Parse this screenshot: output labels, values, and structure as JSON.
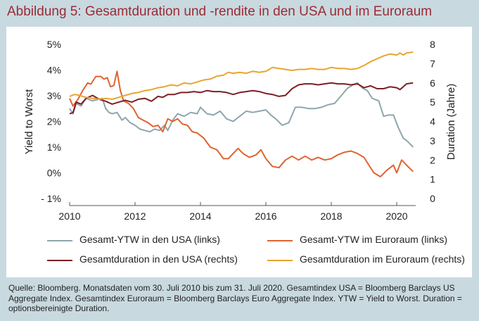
{
  "title": "Abbildung 5: Gesamtduration und -rendite in den USA und im Euroraum",
  "footnote": "Quelle: Bloomberg. Monatsdaten vom 30. Juli 2010 bis zum 31. Juli 2020. Gesamtindex USA = Bloomberg Barclays US Aggregate Index. Gesamtindex Euroraum = Bloomberg Barclays Euro Aggregate Index. YTW = Yield to Worst. Duration = optionsbereinigte Duration.",
  "chart_data": {
    "type": "line",
    "title": "",
    "ylabel": "Yield to Worst",
    "y2label": "Duration (Jahre)",
    "xlim": [
      2010,
      2020.58
    ],
    "ylim": [
      -1,
      5
    ],
    "y2lim": [
      0,
      8
    ],
    "x_ticks": [
      "2010",
      "2012",
      "2014",
      "2016",
      "2018",
      "2020"
    ],
    "x_tick_values": [
      2010,
      2012,
      2014,
      2016,
      2018,
      2020
    ],
    "y_ticks": [
      "- 1%",
      "0%",
      "1%",
      "2%",
      "3%",
      "4%",
      "5%"
    ],
    "y_tick_values": [
      -1,
      0,
      1,
      2,
      3,
      4,
      5
    ],
    "y2_ticks": [
      "0",
      "1",
      "2",
      "3",
      "4",
      "5",
      "6",
      "7",
      "8"
    ],
    "y2_tick_values": [
      0,
      1,
      2,
      3,
      4,
      5,
      6,
      7,
      8
    ],
    "grid": false,
    "legend_position": "bottom",
    "series": [
      {
        "name": "Gesamt-YTW in den USA (links)",
        "axis": "left",
        "color": "#8ea6ad",
        "x": [
          2010.0,
          2010.1,
          2010.2,
          2010.35,
          2010.5,
          2010.7,
          2010.85,
          2011.0,
          2011.1,
          2011.2,
          2011.3,
          2011.45,
          2011.6,
          2011.7,
          2011.85,
          2012.0,
          2012.15,
          2012.3,
          2012.45,
          2012.6,
          2012.75,
          2012.9,
          2013.0,
          2013.15,
          2013.3,
          2013.5,
          2013.7,
          2013.9,
          2014.0,
          2014.2,
          2014.4,
          2014.6,
          2014.8,
          2015.0,
          2015.2,
          2015.4,
          2015.6,
          2015.8,
          2016.0,
          2016.15,
          2016.3,
          2016.5,
          2016.7,
          2016.9,
          2017.1,
          2017.3,
          2017.5,
          2017.7,
          2017.9,
          2018.1,
          2018.3,
          2018.5,
          2018.7,
          2018.8,
          2018.95,
          2019.1,
          2019.25,
          2019.45,
          2019.6,
          2019.75,
          2019.9,
          2020.05,
          2020.2,
          2020.35,
          2020.5
        ],
        "y": [
          2.5,
          2.3,
          2.7,
          2.6,
          2.9,
          2.8,
          2.85,
          2.9,
          2.5,
          2.35,
          2.3,
          2.35,
          2.05,
          2.15,
          1.95,
          1.85,
          1.7,
          1.65,
          1.6,
          1.7,
          1.65,
          1.85,
          1.65,
          2.05,
          2.3,
          2.2,
          2.35,
          2.3,
          2.55,
          2.3,
          2.25,
          2.4,
          2.1,
          2.0,
          2.2,
          2.4,
          2.35,
          2.4,
          2.45,
          2.25,
          2.1,
          1.85,
          1.95,
          2.55,
          2.55,
          2.5,
          2.5,
          2.55,
          2.65,
          2.7,
          3.0,
          3.3,
          3.45,
          3.5,
          3.3,
          3.2,
          2.9,
          2.8,
          2.2,
          2.25,
          2.25,
          1.75,
          1.35,
          1.2,
          1.0
        ]
      },
      {
        "name": "Gesamt-YTW im Euroraum (links)",
        "axis": "left",
        "color": "#e06331",
        "x": [
          2010.0,
          2010.1,
          2010.25,
          2010.4,
          2010.55,
          2010.65,
          2010.8,
          2010.95,
          2011.05,
          2011.15,
          2011.25,
          2011.35,
          2011.45,
          2011.55,
          2011.65,
          2011.8,
          2011.95,
          2012.1,
          2012.25,
          2012.4,
          2012.55,
          2012.7,
          2012.85,
          2013.0,
          2013.15,
          2013.3,
          2013.45,
          2013.6,
          2013.75,
          2013.9,
          2014.1,
          2014.3,
          2014.5,
          2014.7,
          2014.85,
          2015.0,
          2015.15,
          2015.3,
          2015.5,
          2015.7,
          2015.85,
          2016.0,
          2016.2,
          2016.4,
          2016.6,
          2016.8,
          2017.0,
          2017.2,
          2017.4,
          2017.6,
          2017.8,
          2018.0,
          2018.2,
          2018.4,
          2018.6,
          2018.8,
          2019.0,
          2019.15,
          2019.3,
          2019.5,
          2019.7,
          2019.9,
          2020.0,
          2020.15,
          2020.3,
          2020.5
        ],
        "y": [
          2.9,
          2.6,
          2.85,
          3.2,
          3.5,
          3.45,
          3.75,
          3.75,
          3.65,
          3.7,
          3.35,
          3.4,
          3.95,
          3.2,
          2.8,
          2.7,
          2.5,
          2.15,
          2.05,
          1.95,
          1.8,
          1.85,
          1.6,
          2.1,
          2.0,
          2.1,
          1.9,
          1.85,
          1.6,
          1.55,
          1.35,
          1.0,
          0.9,
          0.55,
          0.55,
          0.75,
          0.95,
          0.75,
          0.6,
          0.7,
          0.9,
          0.55,
          0.25,
          0.2,
          0.5,
          0.65,
          0.5,
          0.65,
          0.5,
          0.6,
          0.5,
          0.55,
          0.7,
          0.8,
          0.85,
          0.75,
          0.6,
          0.3,
          0.0,
          -0.15,
          0.1,
          0.3,
          0.0,
          0.5,
          0.3,
          0.05
        ]
      },
      {
        "name": "Gesamtduration in den USA (rechts)",
        "axis": "right",
        "color": "#7d1f25",
        "x": [
          2010.0,
          2010.1,
          2010.2,
          2010.35,
          2010.5,
          2010.7,
          2010.9,
          2011.1,
          2011.3,
          2011.5,
          2011.7,
          2011.9,
          2012.1,
          2012.3,
          2012.5,
          2012.7,
          2012.85,
          2013.0,
          2013.2,
          2013.4,
          2013.6,
          2013.8,
          2014.0,
          2014.2,
          2014.4,
          2014.6,
          2014.8,
          2015.0,
          2015.2,
          2015.4,
          2015.6,
          2015.8,
          2016.0,
          2016.2,
          2016.4,
          2016.6,
          2016.8,
          2017.0,
          2017.2,
          2017.4,
          2017.6,
          2017.8,
          2018.0,
          2018.2,
          2018.4,
          2018.6,
          2018.8,
          2019.0,
          2019.2,
          2019.4,
          2019.6,
          2019.8,
          2020.0,
          2020.1,
          2020.3,
          2020.5
        ],
        "y": [
          4.4,
          4.45,
          5.0,
          4.9,
          5.2,
          5.35,
          5.15,
          5.05,
          4.9,
          5.0,
          5.1,
          5.0,
          5.15,
          5.2,
          5.05,
          5.3,
          5.25,
          5.4,
          5.4,
          5.5,
          5.5,
          5.55,
          5.5,
          5.6,
          5.55,
          5.55,
          5.5,
          5.4,
          5.5,
          5.55,
          5.6,
          5.55,
          5.45,
          5.4,
          5.3,
          5.35,
          5.7,
          5.9,
          5.95,
          5.95,
          5.9,
          5.95,
          6.0,
          5.95,
          5.95,
          5.9,
          5.95,
          5.75,
          5.85,
          5.7,
          5.7,
          5.8,
          5.75,
          5.65,
          5.95,
          6.0
        ]
      },
      {
        "name": "Gesamtduration im Euroraum (rechts)",
        "axis": "right",
        "color": "#e8a530",
        "x": [
          2010.0,
          2010.15,
          2010.3,
          2010.5,
          2010.7,
          2010.9,
          2011.1,
          2011.3,
          2011.5,
          2011.7,
          2011.9,
          2012.1,
          2012.3,
          2012.5,
          2012.7,
          2012.9,
          2013.1,
          2013.3,
          2013.5,
          2013.7,
          2013.9,
          2014.1,
          2014.3,
          2014.5,
          2014.7,
          2014.85,
          2015.0,
          2015.2,
          2015.4,
          2015.6,
          2015.8,
          2016.0,
          2016.2,
          2016.4,
          2016.6,
          2016.8,
          2017.0,
          2017.2,
          2017.4,
          2017.6,
          2017.8,
          2018.0,
          2018.2,
          2018.4,
          2018.6,
          2018.8,
          2019.0,
          2019.2,
          2019.4,
          2019.6,
          2019.8,
          2020.0,
          2020.1,
          2020.2,
          2020.3,
          2020.5
        ],
        "y": [
          5.3,
          5.4,
          5.35,
          5.25,
          5.2,
          5.15,
          5.2,
          5.15,
          5.25,
          5.35,
          5.45,
          5.5,
          5.6,
          5.65,
          5.75,
          5.8,
          5.9,
          5.85,
          6.0,
          5.95,
          6.05,
          6.15,
          6.2,
          6.35,
          6.4,
          6.55,
          6.5,
          6.55,
          6.5,
          6.6,
          6.55,
          6.6,
          6.8,
          6.75,
          6.7,
          6.65,
          6.7,
          6.7,
          6.75,
          6.7,
          6.7,
          6.8,
          6.75,
          6.75,
          6.7,
          6.75,
          6.9,
          7.1,
          7.25,
          7.4,
          7.5,
          7.45,
          7.55,
          7.45,
          7.55,
          7.6
        ]
      }
    ]
  }
}
